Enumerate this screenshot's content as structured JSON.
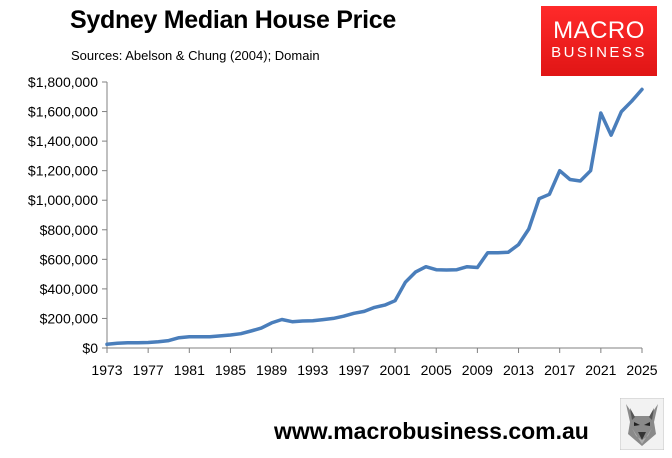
{
  "header": {
    "title": "Sydney Median House Price",
    "subtitle": "Sources: Abelson & Chung (2004); Domain"
  },
  "logo": {
    "top": "MACRO",
    "bottom": "BUSINESS",
    "color": "#e8201f"
  },
  "footer": {
    "website": "www.macrobusiness.com.au"
  },
  "chart_data": {
    "type": "line",
    "title": "Sydney Median House Price",
    "xlabel": "",
    "ylabel": "",
    "grid": false,
    "legend": "none",
    "xlim": [
      1973,
      2025
    ],
    "ylim": [
      0,
      1800000
    ],
    "x_ticks": [
      1973,
      1977,
      1981,
      1985,
      1989,
      1993,
      1997,
      2001,
      2005,
      2009,
      2013,
      2017,
      2021,
      2025
    ],
    "y_ticks": [
      0,
      200000,
      400000,
      600000,
      800000,
      1000000,
      1200000,
      1400000,
      1600000,
      1800000
    ],
    "y_tick_labels": [
      "$0",
      "$200,000",
      "$400,000",
      "$600,000",
      "$800,000",
      "$1,000,000",
      "$1,200,000",
      "$1,400,000",
      "$1,600,000",
      "$1,800,000"
    ],
    "series": [
      {
        "name": "",
        "color": "#4a7ebb",
        "x": [
          1973,
          1974,
          1975,
          1976,
          1977,
          1978,
          1979,
          1980,
          1981,
          1982,
          1983,
          1984,
          1985,
          1986,
          1987,
          1988,
          1989,
          1990,
          1991,
          1992,
          1993,
          1994,
          1995,
          1996,
          1997,
          1998,
          1999,
          2000,
          2001,
          2002,
          2003,
          2004,
          2005,
          2006,
          2007,
          2008,
          2009,
          2010,
          2011,
          2012,
          2013,
          2014,
          2015,
          2016,
          2017,
          2018,
          2019,
          2020,
          2021,
          2022,
          2023,
          2024,
          2025
        ],
        "values": [
          25000,
          32000,
          35000,
          35000,
          37000,
          42000,
          50000,
          70000,
          76000,
          76000,
          76000,
          82000,
          88000,
          97000,
          115000,
          135000,
          170000,
          193000,
          178000,
          183000,
          185000,
          192000,
          200000,
          215000,
          235000,
          248000,
          275000,
          290000,
          320000,
          445000,
          515000,
          550000,
          530000,
          528000,
          530000,
          550000,
          545000,
          645000,
          645000,
          648000,
          700000,
          805000,
          1010000,
          1040000,
          1200000,
          1140000,
          1130000,
          1200000,
          1590000,
          1440000,
          1600000,
          1670000,
          1750000
        ]
      }
    ]
  }
}
